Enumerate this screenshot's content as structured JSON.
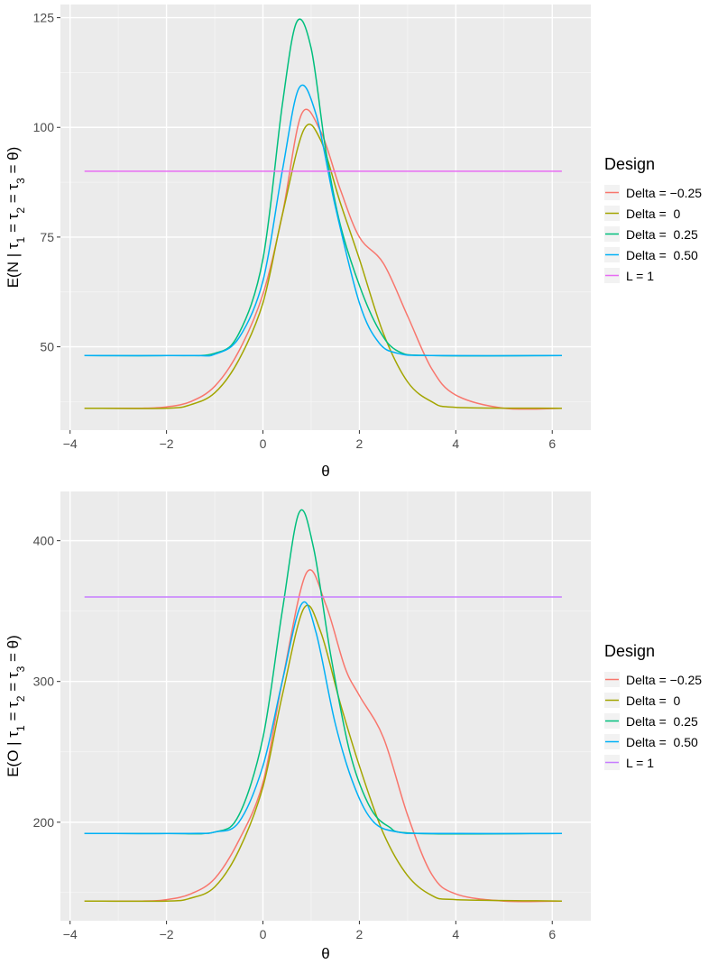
{
  "chart_data": [
    {
      "type": "line",
      "xlabel": "θ",
      "ylabel": "E(N | τ1 = τ2 = τ3 = θ)",
      "ylabel_parts": {
        "prefix": "E(N | ",
        "sub1": "1",
        "sub2": "2",
        "sub3": "3",
        "suffix": " = θ)",
        "tau": "τ",
        "eq": " = "
      },
      "xlim": [
        -4.2,
        6.8
      ],
      "ylim": [
        31,
        128
      ],
      "xticks": [
        -4,
        -2,
        0,
        2,
        4,
        6
      ],
      "xtick_labels": [
        "−4",
        "−2",
        "0",
        "2",
        "4",
        "6"
      ],
      "yticks": [
        50,
        75,
        100,
        125
      ],
      "ytick_labels": [
        "50",
        "75",
        "100",
        "125"
      ],
      "legend": {
        "title": "Design",
        "labels": [
          "Delta = −0.25",
          "Delta =  0",
          "Delta =  0.25",
          "Delta =  0.50",
          "L = 1"
        ]
      },
      "series": [
        {
          "name": "Delta = −0.25",
          "color": "#F8766D",
          "points": [
            [
              -3.7,
              36
            ],
            [
              -2.5,
              36
            ],
            [
              -2,
              36.3
            ],
            [
              -1.5,
              37.5
            ],
            [
              -1,
              41
            ],
            [
              -0.5,
              49
            ],
            [
              0,
              62
            ],
            [
              0.4,
              80
            ],
            [
              0.8,
              103
            ],
            [
              1.2,
              99
            ],
            [
              1.6,
              86
            ],
            [
              2,
              75
            ],
            [
              2.5,
              69
            ],
            [
              3,
              57
            ],
            [
              3.5,
              45
            ],
            [
              4,
              39
            ],
            [
              5,
              36
            ],
            [
              6.2,
              36
            ]
          ]
        },
        {
          "name": "Delta =  0",
          "color": "#A3A500",
          "points": [
            [
              -3.7,
              36
            ],
            [
              -2,
              36
            ],
            [
              -1.5,
              36.8
            ],
            [
              -1,
              39.5
            ],
            [
              -0.5,
              47
            ],
            [
              0,
              60
            ],
            [
              0.4,
              80
            ],
            [
              0.85,
              99.5
            ],
            [
              1.2,
              97
            ],
            [
              1.6,
              83
            ],
            [
              2,
              70
            ],
            [
              2.5,
              53
            ],
            [
              3,
              42
            ],
            [
              3.5,
              37.5
            ],
            [
              4,
              36.2
            ],
            [
              6.2,
              36
            ]
          ]
        },
        {
          "name": "Delta =  0.25",
          "color": "#00BF7D",
          "points": [
            [
              -3.7,
              48
            ],
            [
              -2,
              48
            ],
            [
              -1,
              48.5
            ],
            [
              -0.5,
              53
            ],
            [
              0,
              70
            ],
            [
              0.4,
              105
            ],
            [
              0.7,
              124
            ],
            [
              1,
              118
            ],
            [
              1.3,
              95
            ],
            [
              1.6,
              78
            ],
            [
              2,
              64
            ],
            [
              2.4,
              54
            ],
            [
              2.8,
              49
            ],
            [
              3.5,
              48
            ],
            [
              6.2,
              48
            ]
          ]
        },
        {
          "name": "Delta =  0.50",
          "color": "#00B0F6",
          "points": [
            [
              -3.7,
              48
            ],
            [
              -1.5,
              48
            ],
            [
              -1,
              48.3
            ],
            [
              -0.5,
              52
            ],
            [
              0,
              65
            ],
            [
              0.4,
              90
            ],
            [
              0.75,
              109
            ],
            [
              1.1,
              103
            ],
            [
              1.5,
              82
            ],
            [
              2,
              60
            ],
            [
              2.4,
              51
            ],
            [
              2.8,
              48.5
            ],
            [
              3.5,
              48
            ],
            [
              6.2,
              48
            ]
          ]
        },
        {
          "name": "L = 1",
          "color": "#E76BF3",
          "points": [
            [
              -3.7,
              90
            ],
            [
              6.2,
              90
            ]
          ]
        }
      ]
    },
    {
      "type": "line",
      "xlabel": "θ",
      "ylabel": "E(O | τ1 = τ2 = τ3 = θ)",
      "ylabel_parts": {
        "prefix": "E(O | ",
        "sub1": "1",
        "sub2": "2",
        "sub3": "3",
        "suffix": " = θ)",
        "tau": "τ",
        "eq": " = "
      },
      "xlim": [
        -4.2,
        6.8
      ],
      "ylim": [
        130,
        435
      ],
      "xticks": [
        -4,
        -2,
        0,
        2,
        4,
        6
      ],
      "xtick_labels": [
        "−4",
        "−2",
        "0",
        "2",
        "4",
        "6"
      ],
      "yticks": [
        200,
        300,
        400
      ],
      "ytick_labels": [
        "200",
        "300",
        "400"
      ],
      "legend": {
        "title": "Design",
        "labels": [
          "Delta = −0.25",
          "Delta =  0",
          "Delta =  0.25",
          "Delta =  0.50",
          "L = 1"
        ]
      },
      "series": [
        {
          "name": "Delta = −0.25",
          "color": "#F8766D",
          "points": [
            [
              -3.7,
              144
            ],
            [
              -2.5,
              144
            ],
            [
              -2,
              145
            ],
            [
              -1.5,
              149
            ],
            [
              -1,
              160
            ],
            [
              -0.5,
              187
            ],
            [
              0,
              228
            ],
            [
              0.4,
              300
            ],
            [
              0.9,
              377
            ],
            [
              1.3,
              355
            ],
            [
              1.7,
              310
            ],
            [
              2,
              290
            ],
            [
              2.5,
              260
            ],
            [
              3,
              205
            ],
            [
              3.5,
              163
            ],
            [
              4,
              149
            ],
            [
              5,
              144
            ],
            [
              6.2,
              144
            ]
          ]
        },
        {
          "name": "Delta =  0",
          "color": "#A3A500",
          "points": [
            [
              -3.7,
              144
            ],
            [
              -2,
              144
            ],
            [
              -1.5,
              146
            ],
            [
              -1,
              154
            ],
            [
              -0.5,
              180
            ],
            [
              0,
              225
            ],
            [
              0.4,
              290
            ],
            [
              0.85,
              352
            ],
            [
              1.2,
              335
            ],
            [
              1.6,
              285
            ],
            [
              2,
              240
            ],
            [
              2.5,
              192
            ],
            [
              3,
              162
            ],
            [
              3.5,
              148
            ],
            [
              4,
              145
            ],
            [
              6.2,
              144
            ]
          ]
        },
        {
          "name": "Delta =  0.25",
          "color": "#00BF7D",
          "points": [
            [
              -3.7,
              192
            ],
            [
              -2,
              192
            ],
            [
              -1,
              193
            ],
            [
              -0.5,
              205
            ],
            [
              0,
              260
            ],
            [
              0.4,
              350
            ],
            [
              0.75,
              420
            ],
            [
              1.05,
              395
            ],
            [
              1.4,
              320
            ],
            [
              1.8,
              250
            ],
            [
              2.2,
              212
            ],
            [
              2.6,
              197
            ],
            [
              3.2,
              192
            ],
            [
              6.2,
              192
            ]
          ]
        },
        {
          "name": "Delta =  0.50",
          "color": "#00B0F6",
          "points": [
            [
              -3.7,
              192
            ],
            [
              -1.5,
              192
            ],
            [
              -1,
              193
            ],
            [
              -0.5,
              200
            ],
            [
              0,
              240
            ],
            [
              0.4,
              300
            ],
            [
              0.8,
              355
            ],
            [
              1.1,
              335
            ],
            [
              1.5,
              270
            ],
            [
              1.9,
              225
            ],
            [
              2.3,
              200
            ],
            [
              2.8,
              193
            ],
            [
              3.5,
              192
            ],
            [
              6.2,
              192
            ]
          ]
        },
        {
          "name": "L = 1",
          "color": "#C77CFF",
          "points": [
            [
              -3.7,
              360
            ],
            [
              6.2,
              360
            ]
          ]
        }
      ]
    }
  ]
}
